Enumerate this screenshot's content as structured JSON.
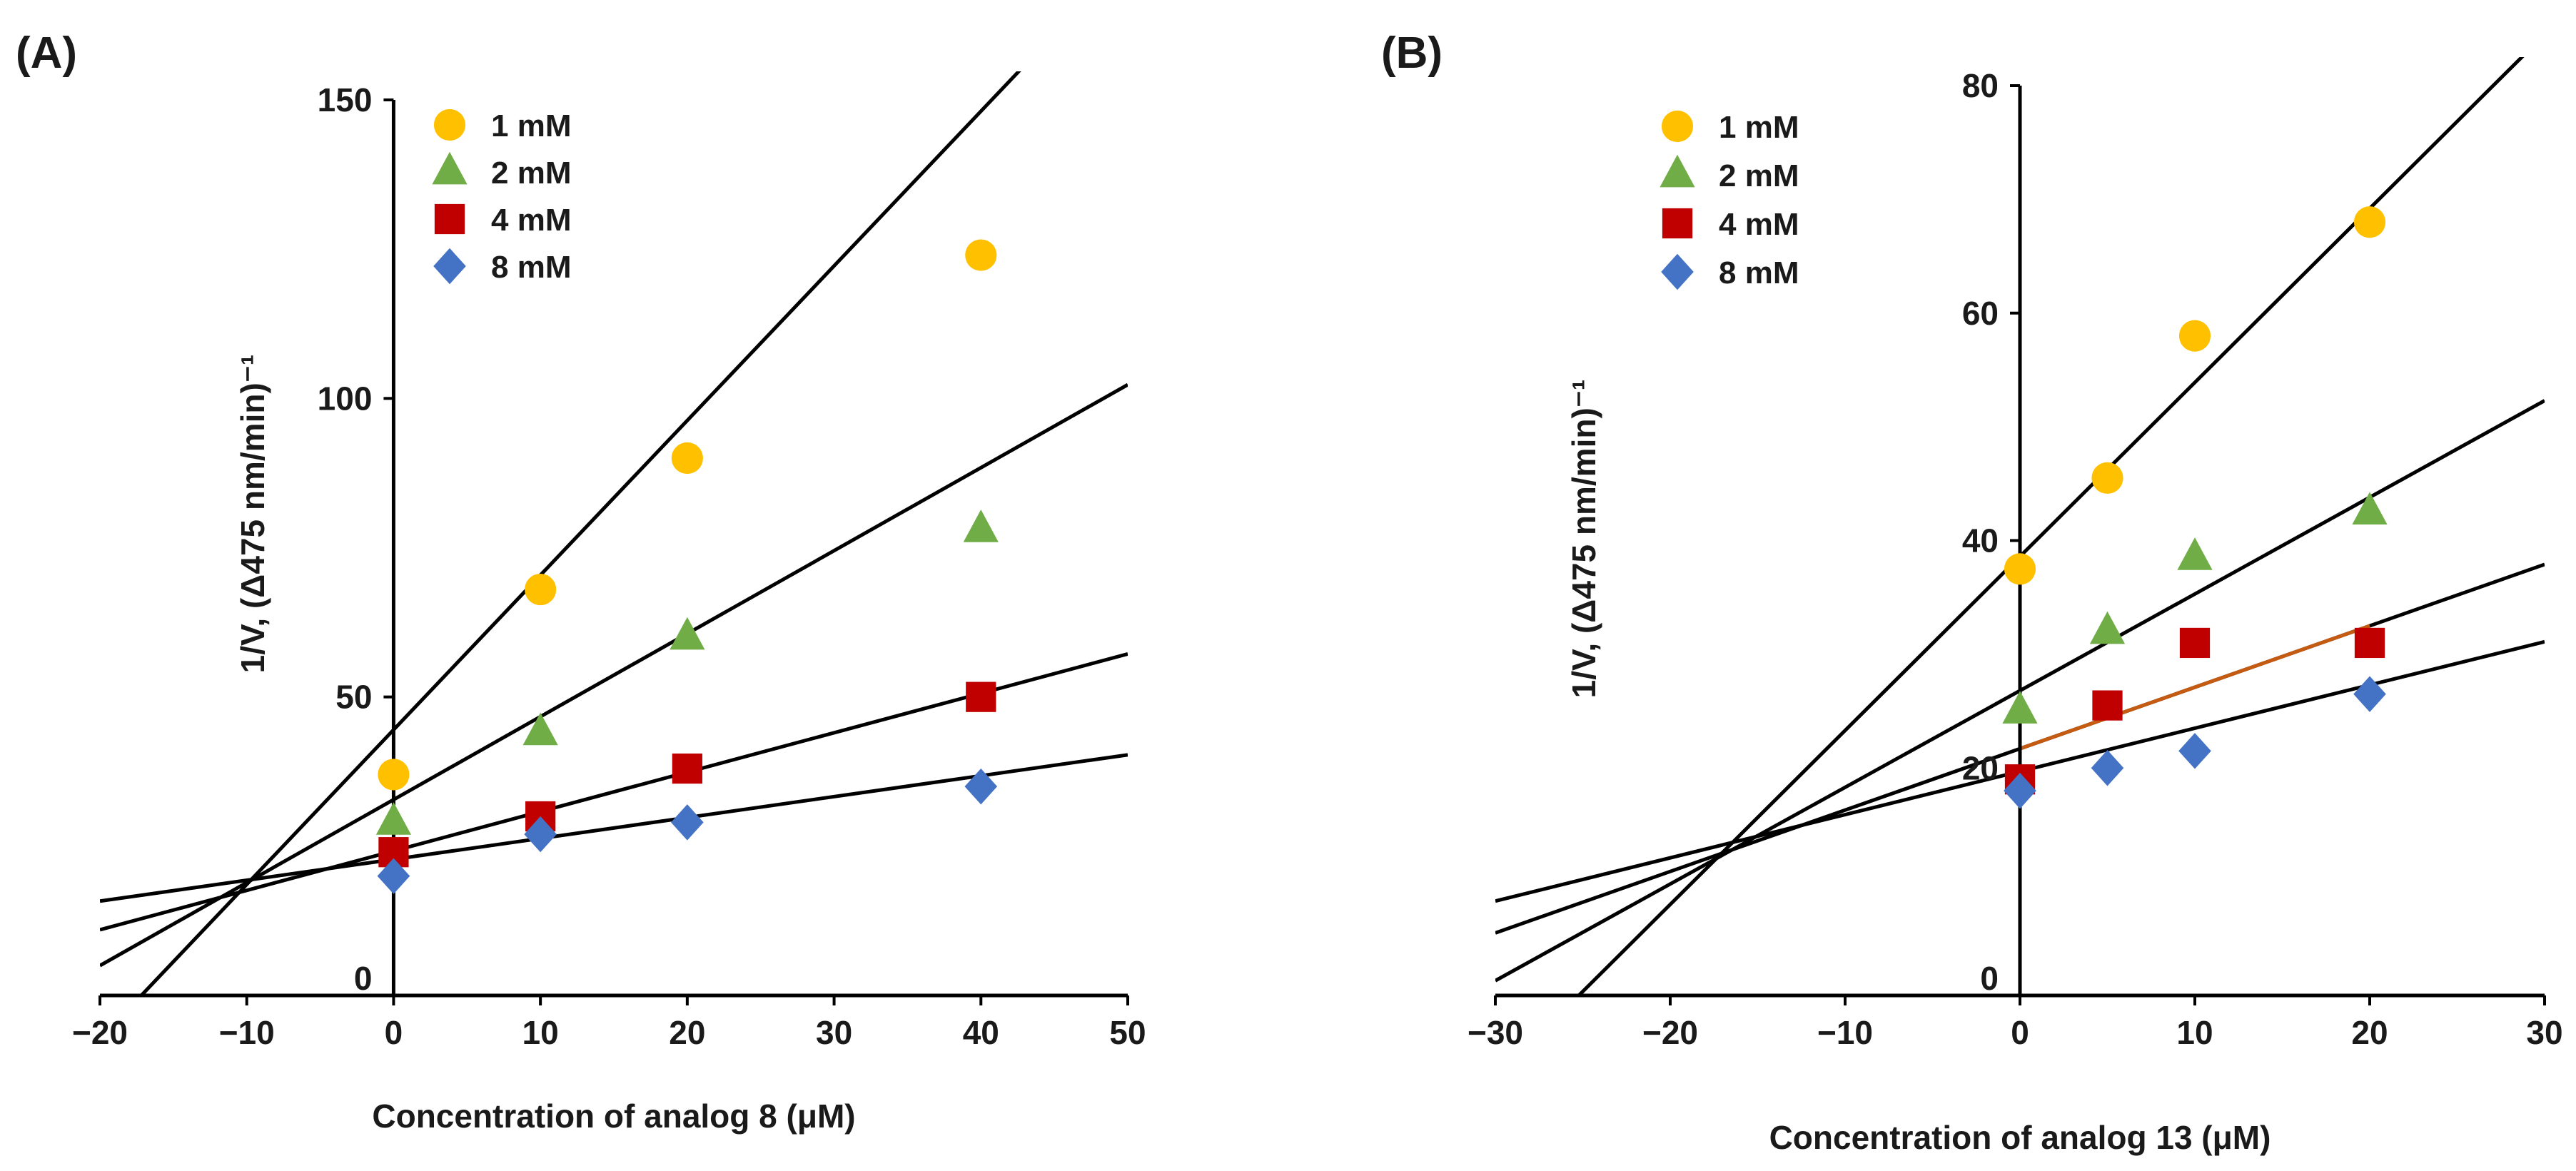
{
  "chart_data": [
    {
      "type": "scatter",
      "panel_label": "(A)",
      "title": "",
      "xlabel": "Concentration of analog 8 (μM)",
      "ylabel": "1/V, (Δ475 nm/min)⁻¹",
      "xlim": [
        -20,
        50
      ],
      "ylim": [
        0,
        150
      ],
      "xticks": [
        -20,
        -10,
        0,
        10,
        20,
        30,
        40,
        50
      ],
      "xtick_labels": [
        "−20",
        "−10",
        "0",
        "10",
        "20",
        "30",
        "40",
        "50"
      ],
      "yticks": [
        0,
        50,
        100,
        150
      ],
      "ytick_labels": [
        "0",
        "50",
        "100",
        "150"
      ],
      "legend_position": "top-left",
      "series": [
        {
          "name": "1 mM",
          "marker": "circle",
          "color": "#FFC000",
          "x": [
            0,
            10,
            20,
            40
          ],
          "y": [
            37,
            68,
            90,
            124
          ],
          "fit": {
            "slope": 2.59,
            "intercept": 44.5
          }
        },
        {
          "name": "2 mM",
          "marker": "triangle",
          "color": "#70AD47",
          "x": [
            0,
            10,
            20,
            40
          ],
          "y": [
            29,
            44,
            60,
            78
          ],
          "fit": {
            "slope": 1.39,
            "intercept": 32.8
          }
        },
        {
          "name": "4 mM",
          "marker": "square",
          "color": "#C00000",
          "x": [
            0,
            10,
            20,
            40
          ],
          "y": [
            24,
            30,
            38,
            50
          ],
          "fit": {
            "slope": 0.66,
            "intercept": 24.2
          }
        },
        {
          "name": "8 mM",
          "marker": "diamond",
          "color": "#4472C4",
          "x": [
            0,
            10,
            20,
            40
          ],
          "y": [
            20,
            27,
            29,
            35
          ],
          "fit": {
            "slope": 0.35,
            "intercept": 22.8
          }
        }
      ]
    },
    {
      "type": "scatter",
      "panel_label": "(B)",
      "title": "",
      "xlabel": "Concentration of analog 13 (μM)",
      "ylabel": "1/V, (Δ475 nm/min)⁻¹",
      "xlim": [
        -30,
        30
      ],
      "ylim": [
        0,
        80
      ],
      "xticks": [
        -30,
        -20,
        -10,
        0,
        10,
        20,
        30
      ],
      "xtick_labels": [
        "−30",
        "−20",
        "−10",
        "0",
        "10",
        "20",
        "30"
      ],
      "yticks": [
        0,
        20,
        40,
        60,
        80
      ],
      "ytick_labels": [
        "0",
        "20",
        "40",
        "60",
        "80"
      ],
      "legend_position": "top-left",
      "series": [
        {
          "name": "1 mM",
          "marker": "circle",
          "color": "#FFC000",
          "x": [
            0,
            5,
            10,
            20
          ],
          "y": [
            37.5,
            45.5,
            58,
            68
          ],
          "fit": {
            "slope": 1.53,
            "intercept": 38.6
          }
        },
        {
          "name": "2 mM",
          "marker": "triangle",
          "color": "#70AD47",
          "x": [
            0,
            5,
            10,
            20
          ],
          "y": [
            25,
            32,
            38.5,
            42.5
          ],
          "fit": {
            "slope": 0.85,
            "intercept": 26.8
          }
        },
        {
          "name": "4 mM",
          "marker": "square",
          "color": "#C00000",
          "x": [
            0,
            5,
            10,
            20
          ],
          "y": [
            19,
            25.5,
            31,
            31
          ],
          "fit": {
            "slope": 0.54,
            "intercept": 21.7,
            "color": "#C55A11"
          }
        },
        {
          "name": "8 mM",
          "marker": "diamond",
          "color": "#4472C4",
          "x": [
            0,
            5,
            10,
            20
          ],
          "y": [
            18,
            20,
            21.5,
            26.5
          ],
          "fit": {
            "slope": 0.38,
            "intercept": 19.7
          }
        }
      ]
    }
  ]
}
